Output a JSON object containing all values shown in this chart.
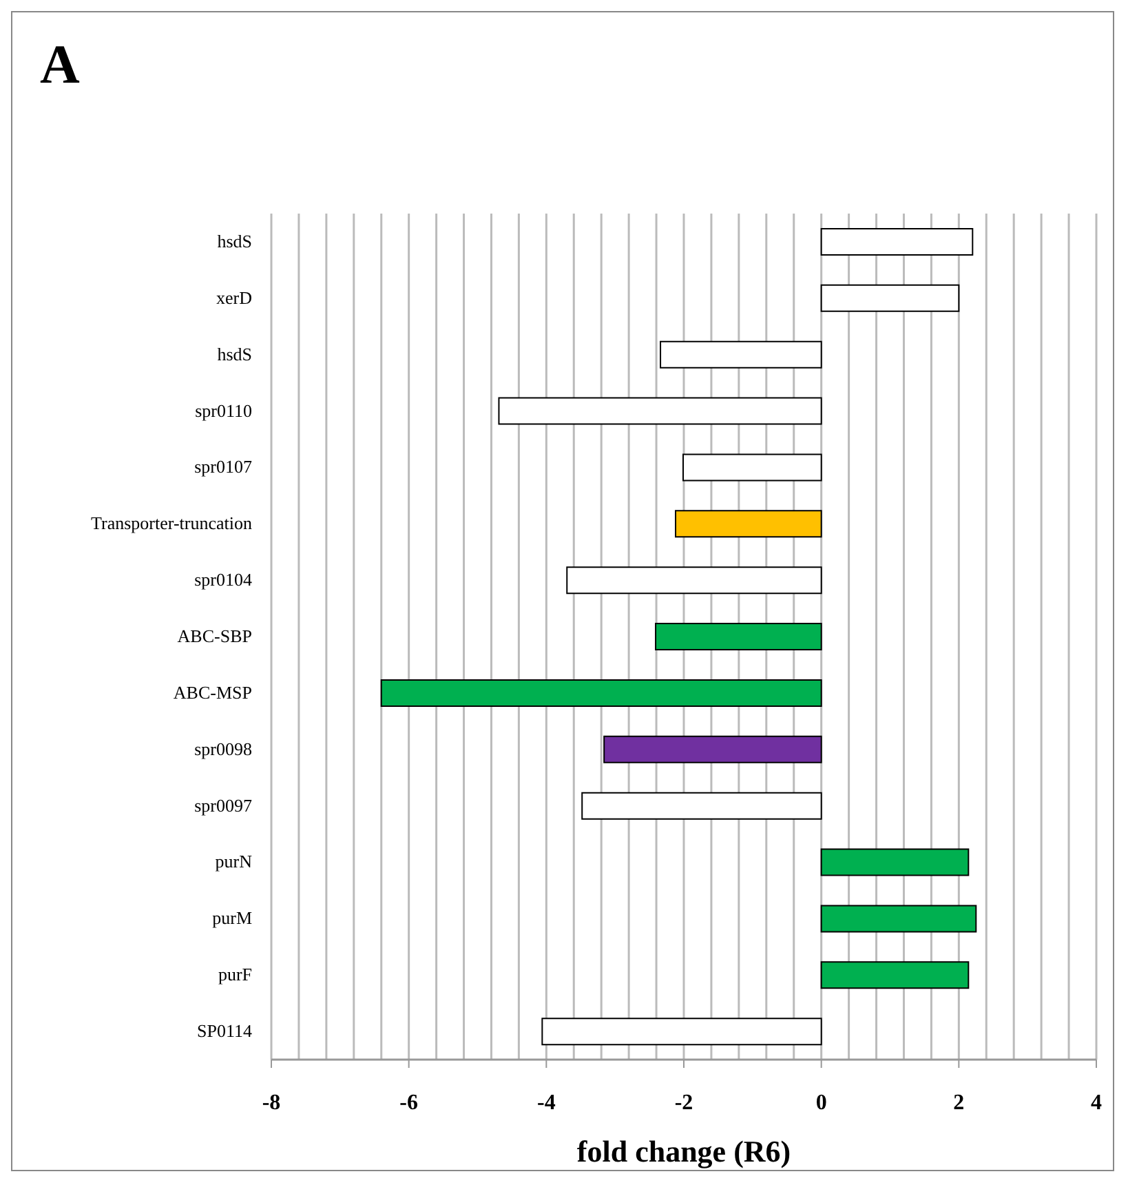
{
  "chart_data": {
    "type": "bar",
    "orientation": "horizontal",
    "title": "A",
    "xlabel": "fold change (R6)",
    "categories": [
      "hsdS",
      "xerD",
      "hsdS",
      "spr0110",
      "spr0107",
      "Transporter-truncation",
      "spr0104",
      "ABC-SBP",
      "ABC-MSP",
      "spr0098",
      "spr0097",
      "purN",
      "purM",
      "purF",
      "SP0114"
    ],
    "values": [
      2.2,
      2.0,
      -2.34,
      -4.69,
      -2.01,
      -2.12,
      -3.7,
      -2.41,
      -6.4,
      -3.16,
      -3.48,
      2.14,
      2.25,
      2.14,
      -4.06
    ],
    "colors": [
      "#ffffff",
      "#ffffff",
      "#ffffff",
      "#ffffff",
      "#ffffff",
      "#ffc000",
      "#ffffff",
      "#00b050",
      "#00b050",
      "#7030a0",
      "#ffffff",
      "#00b050",
      "#00b050",
      "#00b050",
      "#ffffff"
    ],
    "xlim": [
      -8,
      4
    ],
    "xticks": [
      -8,
      {
        "value": -7.6,
        "label": null
      },
      {
        "value": -7.2,
        "label": null
      },
      {
        "value": -6.8,
        "label": null
      },
      {
        "value": -6.4,
        "label": null
      },
      -6,
      {
        "value": -5.6,
        "label": null
      },
      {
        "value": -5.2,
        "label": null
      },
      {
        "value": -4.8,
        "label": null
      },
      {
        "value": -4.4,
        "label": null
      },
      -4,
      {
        "value": -3.6,
        "label": null
      },
      {
        "value": -3.2,
        "label": null
      },
      {
        "value": -2.8,
        "label": null
      },
      {
        "value": -2.4,
        "label": null
      },
      -2,
      {
        "value": -1.6,
        "label": null
      },
      {
        "value": -1.2,
        "label": null
      },
      {
        "value": -0.8,
        "label": null
      },
      {
        "value": -0.4,
        "label": null
      },
      0,
      {
        "value": 0.4,
        "label": null
      },
      {
        "value": 0.8,
        "label": null
      },
      {
        "value": 1.2,
        "label": null
      },
      {
        "value": 1.6,
        "label": null
      },
      2,
      {
        "value": 2.4,
        "label": null
      },
      {
        "value": 2.8,
        "label": null
      },
      {
        "value": 3.2,
        "label": null
      },
      {
        "value": 3.6,
        "label": null
      },
      4
    ],
    "grid": "x",
    "legend": false
  }
}
